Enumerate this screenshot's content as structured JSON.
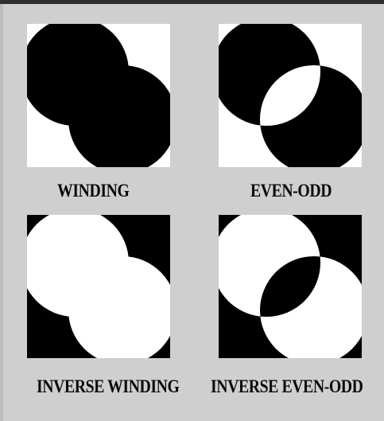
{
  "panels": [
    {
      "id": "winding",
      "label": "WINDING"
    },
    {
      "id": "even-odd",
      "label": "EVEN-ODD"
    },
    {
      "id": "inverse-winding",
      "label": "INVERSE WINDING"
    },
    {
      "id": "inverse-even-odd",
      "label": "INVERSE EVEN-ODD"
    }
  ],
  "colors": {
    "background": "#cfcfcf",
    "fill": "#000000",
    "empty": "#ffffff"
  }
}
